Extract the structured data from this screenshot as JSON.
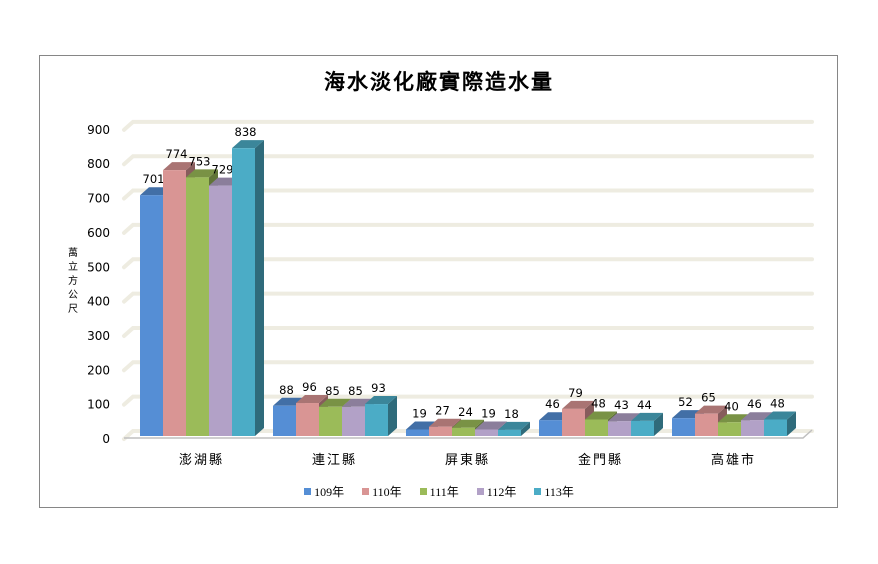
{
  "chart_data": {
    "type": "bar",
    "title": "海水淡化廠實際造水量",
    "xlabel": "",
    "ylabel": "萬立方公尺",
    "ylim": [
      0,
      900
    ],
    "yticks": [
      0,
      100,
      200,
      300,
      400,
      500,
      600,
      700,
      800,
      900
    ],
    "grid": true,
    "legend_position": "bottom",
    "style": "3d-clustered-column",
    "categories": [
      "澎湖縣",
      "連江縣",
      "屏東縣",
      "金門縣",
      "高雄市"
    ],
    "series": [
      {
        "name": "109年",
        "color": "#558ED5",
        "values": [
          701,
          88,
          19,
          46,
          52
        ]
      },
      {
        "name": "110年",
        "color": "#D99594",
        "values": [
          774,
          96,
          27,
          79,
          65
        ]
      },
      {
        "name": "111年",
        "color": "#9BBB59",
        "values": [
          753,
          85,
          24,
          48,
          40
        ]
      },
      {
        "name": "112年",
        "color": "#B2A1C7",
        "values": [
          729,
          85,
          19,
          43,
          46
        ]
      },
      {
        "name": "113年",
        "color": "#4BACC6",
        "values": [
          838,
          93,
          18,
          44,
          48
        ]
      }
    ]
  },
  "labels": {
    "title": "海水淡化廠實際造水量",
    "ylabel_chars": [
      "萬",
      "立",
      "方",
      "公",
      "尺"
    ]
  }
}
